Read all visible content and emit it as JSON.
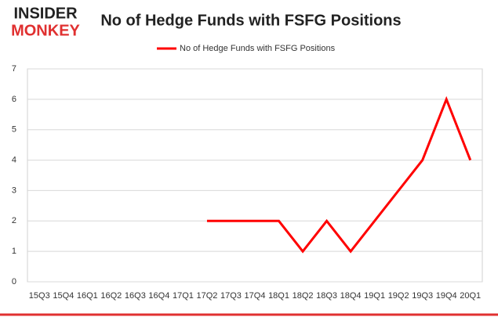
{
  "logo": {
    "line1": "INSIDER",
    "line2": "MONKEY"
  },
  "chart_data": {
    "type": "line",
    "title": "No of Hedge Funds with FSFG Positions",
    "categories": [
      "15Q3",
      "15Q4",
      "16Q1",
      "16Q2",
      "16Q3",
      "16Q4",
      "17Q1",
      "17Q2",
      "17Q3",
      "17Q4",
      "18Q1",
      "18Q2",
      "18Q3",
      "18Q4",
      "19Q1",
      "19Q2",
      "19Q3",
      "19Q4",
      "20Q1"
    ],
    "series": [
      {
        "name": "No of Hedge Funds with FSFG Positions",
        "color": "#ff0000",
        "values": [
          null,
          null,
          null,
          null,
          null,
          null,
          null,
          2,
          2,
          2,
          2,
          1,
          2,
          1,
          2,
          3,
          4,
          6,
          4
        ]
      }
    ],
    "ylim": [
      0,
      7
    ],
    "yticks": [
      0,
      1,
      2,
      3,
      4,
      5,
      6,
      7
    ],
    "grid": true,
    "legend": "top"
  }
}
